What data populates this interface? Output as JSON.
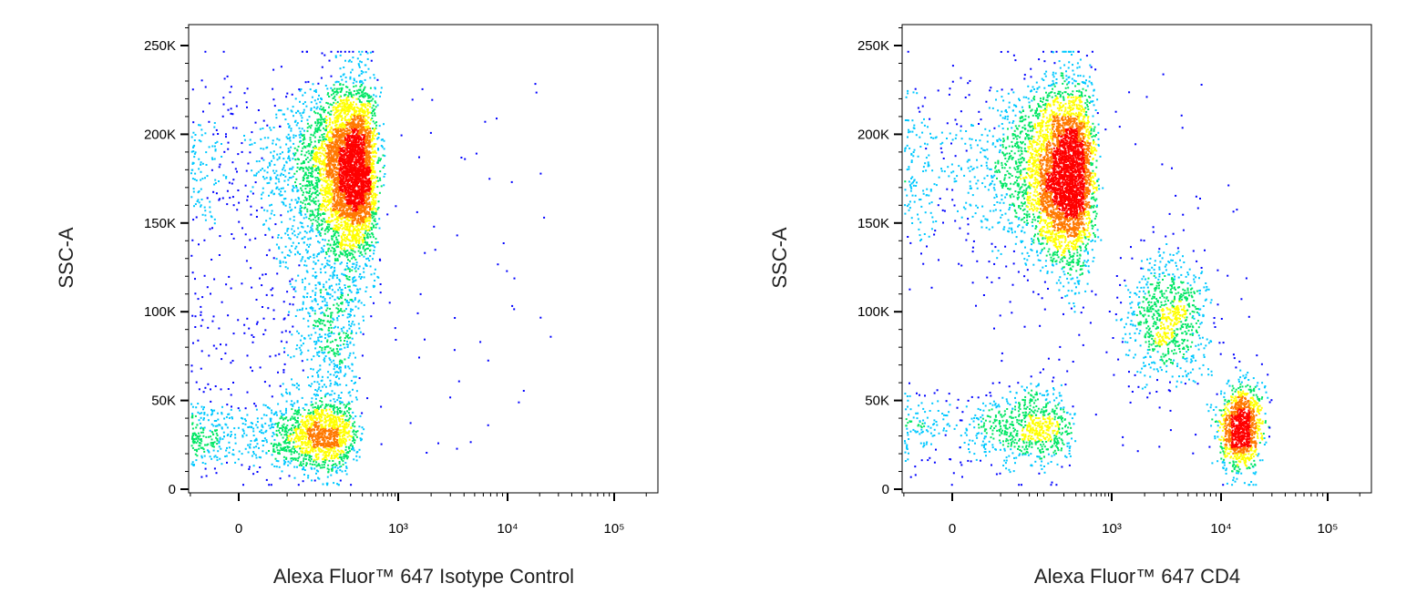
{
  "chart_data": [
    {
      "type": "scatter",
      "subtype": "flow-cytometry-pseudocolor-density",
      "xlabel": "Alexa Fluor™ 647 Isotype Control",
      "ylabel": "SSC-A",
      "x_scale": "biexponential",
      "x_tick_labels": [
        "0",
        "10³",
        "10⁴",
        "10⁵"
      ],
      "x_ticks": [
        0,
        1000,
        10000,
        100000
      ],
      "y_tick_labels": [
        "0",
        "50K",
        "100K",
        "150K",
        "200K",
        "250K"
      ],
      "y_ticks": [
        0,
        50000,
        100000,
        150000,
        200000,
        250000
      ],
      "ylim": [
        0,
        262144
      ],
      "grid": false,
      "density_colors": [
        "#0000ff",
        "#00c8ff",
        "#00e664",
        "#ffff00",
        "#ff7800",
        "#ff0000"
      ],
      "populations": [
        {
          "x_center": 0,
          "y_center": 30000,
          "x_spread": 95,
          "y_spread": 10000,
          "events": 2600
        },
        {
          "x_center": 160,
          "y_center": 180000,
          "x_spread": 140,
          "y_spread": 24000,
          "events": 5200
        },
        {
          "x_center": 60,
          "y_center": 90000,
          "x_spread": 90,
          "y_spread": 32000,
          "events": 1000
        }
      ]
    },
    {
      "type": "scatter",
      "subtype": "flow-cytometry-pseudocolor-density",
      "xlabel": "Alexa Fluor™ 647 CD4",
      "ylabel": "SSC-A",
      "x_scale": "biexponential",
      "x_tick_labels": [
        "0",
        "10³",
        "10⁴",
        "10⁵"
      ],
      "x_ticks": [
        0,
        1000,
        10000,
        100000
      ],
      "y_tick_labels": [
        "0",
        "50K",
        "100K",
        "150K",
        "200K",
        "250K"
      ],
      "y_ticks": [
        0,
        50000,
        100000,
        150000,
        200000,
        250000
      ],
      "ylim": [
        0,
        262144
      ],
      "grid": false,
      "density_colors": [
        "#0000ff",
        "#00c8ff",
        "#00e664",
        "#ffff00",
        "#ff7800",
        "#ff0000"
      ],
      "populations": [
        {
          "x_center": 0,
          "y_center": 35000,
          "x_spread": 95,
          "y_spread": 11000,
          "events": 1500
        },
        {
          "x_center": 150,
          "y_center": 178000,
          "x_spread": 170,
          "y_spread": 25000,
          "events": 5200
        },
        {
          "x_center": 3200,
          "y_center": 95000,
          "x_spread": 1400,
          "y_spread": 18000,
          "events": 800
        },
        {
          "x_center": 15000,
          "y_center": 35000,
          "x_spread": 3500,
          "y_spread": 12000,
          "events": 1100
        }
      ]
    }
  ]
}
